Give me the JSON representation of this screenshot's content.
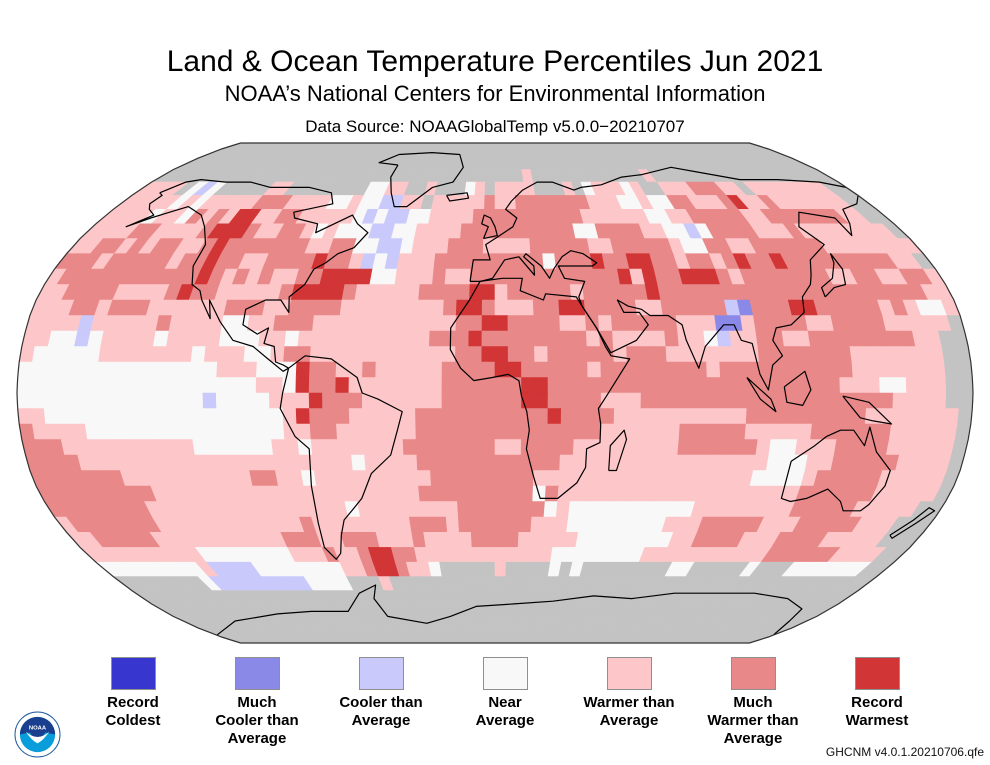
{
  "header": {
    "title": "Land & Ocean Temperature Percentiles Jun 2021",
    "subtitle": "NOAA’s National Centers for Environmental Information",
    "data_source": "Data Source: NOAAGlobalTemp v5.0.0−20210707"
  },
  "footer": {
    "version": "GHCNM v4.0.1.20210706.qfe",
    "logo_text": "NOAA"
  },
  "map": {
    "projection": "Robinson",
    "grid_resolution_deg": 5,
    "no_data_color": "#c3c3c3",
    "coastline_color": "#000000",
    "category_codes": {
      "g": "no-data",
      "c": "record-coldest",
      "b": "much-cooler",
      "a": "cooler",
      "0": "near-average",
      "1": "warmer",
      "2": "much-warmer",
      "3": "record-warmest"
    },
    "rows_north_to_south": [
      "gggggggggggggggggggggggggggggggggggggggggggggggggggggggggggggggggggggggg",
      "gggggggggggggggggggggggggggggggggggggggggggggggggggggggggggggggggggggggg",
      "gggggggggggggggggggggggggggggggggggggggggggggggggggggggggggggggggggggggg",
      "ggggggggggggggggggggggggggggggggggggggg1gggggggggggg1gggggggggggggggggg",
      "1111g0a0ggggg11gggggggg0011gg1ggg01g1111ggg1g011101gg11122211g11111111",
      "1111101011111222111100100aa11g1111121122222221110010022111231121111111",
      "111101102121331122111110a0aa001111222222222211111100112222211222222211",
      "1111221111233321122101000aa00111122222222220022221100a02222111211111111",
      "11221212211232222222112200aa01112221111222221122222100221122222211111111",
      "2221222221223221122223221a0a1112222222220222322332212212322322222222211",
      "122222222222321212112233330011121122222222222231322333212222222112211221",
      "1122221111232211111233332111112222331222221222223222222222222222222222112",
      "111221222111111222112222111111112332111223322221122222ab222332222212100112",
      "1111a111112111100112221111111111122332222112122222111bb1222211222211111",
      "1100a011110111100011011111111112223222222221211112110a1122112222222211",
      "1000001111111011100122111111111112233221222221222111111122222221111111",
      "0000000000000001110003221121111122223322222122222222122222222221111111",
      "0000000000000000001103223111111122222233222222222222222222222211100111",
      "00000000000000a0000111322211111122222233222211122222222222222222221111",
      "11000000000000000000132221111122222222223222211111111112222222221111111",
      "21111000000000000000112211111122222222222222111111222221111122222211111",
      "22211111111110000001101111111222222211222211111111222222100111222211111",
      "22221111111111111111111110111122222222222111111111111111100011222221111",
      "22222221111111111221101111111112222222211111111111111111000012222211111",
      "22222222211111111111111111111122222222202111111111111111111122222211111",
      "2222222211111111111111110111111112222222010000000000111111112222211111",
      "122222221111111111112111111112221222222111000000001112222211122222111",
      "112222211111111111222112221112111122221111100000000112222111222211111",
      "1111111111000000001112112332211111111111100000000111111111112222221111",
      "0000000001aaaa00000000112332110ggggg1gggg0g0gggggggg00ggggg0ggg0000000",
      "gggggggg0aaaaaaaaa0000ggg1ggggggggggggggggggggggggggggggggggggggggggggg",
      "gggggggggggggggggggggggggggggggggggggggggggggggggggggggggggggggggggggggg",
      "gggggggggggggggggggggggggggggggggggggggggggggggggggggggggggggggggggggggg",
      "gggggggggggggggggggggggggggggggggggggggggggggggggggggggggggggggggggggggg",
      "gggggggggggggggggggggggggggggggggggggggggggggggggggggggggggggggggggggggg",
      "gggggggggggggggggggggggggggggggggggggggggggggggggggggggggggggggggggggggg"
    ]
  },
  "legend": {
    "items": [
      {
        "key": "record-coldest",
        "label": "Record\nColdest",
        "color": "#3737d0"
      },
      {
        "key": "much-cooler",
        "label": "Much\nCooler than\nAverage",
        "color": "#8a89e8"
      },
      {
        "key": "cooler",
        "label": "Cooler than\nAverage",
        "color": "#c9c9fc"
      },
      {
        "key": "near-average",
        "label": "Near\nAverage",
        "color": "#f8f8f8"
      },
      {
        "key": "warmer",
        "label": "Warmer than\nAverage",
        "color": "#fdc7c9"
      },
      {
        "key": "much-warmer",
        "label": "Much\nWarmer than\nAverage",
        "color": "#e88888"
      },
      {
        "key": "record-warmest",
        "label": "Record\nWarmest",
        "color": "#d13536"
      }
    ]
  }
}
